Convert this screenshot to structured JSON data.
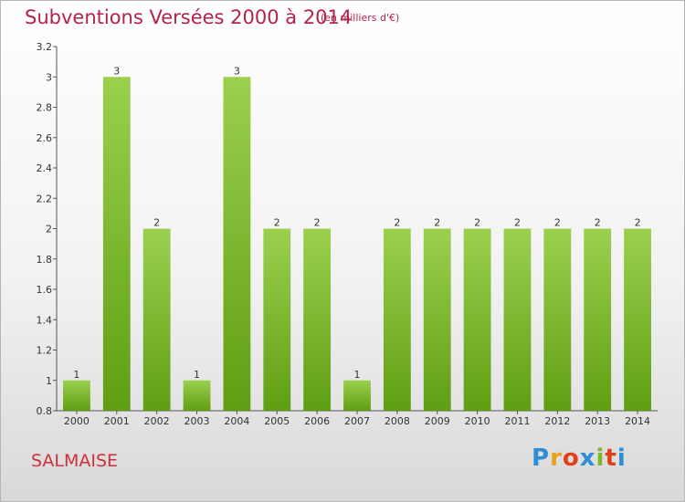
{
  "header": {
    "title": "Subventions Versées 2000 à 2014",
    "subtitle": "(en milliers d'€)"
  },
  "footer": {
    "commune": "SALMAISE",
    "brand_letters": [
      "P",
      "r",
      "o",
      "x",
      "i",
      "t",
      "i"
    ],
    "brand_colors": [
      "#2f8fd6",
      "#e8a21c",
      "#e2401c",
      "#2f8fd6",
      "#7ab82c",
      "#e2401c",
      "#2f8fd6"
    ]
  },
  "colors": {
    "bar_light": "#9bd04f",
    "bar_dark": "#5f9e12",
    "axis": "#555555"
  },
  "chart_data": {
    "type": "bar",
    "categories": [
      "2000",
      "2001",
      "2002",
      "2003",
      "2004",
      "2005",
      "2006",
      "2007",
      "2008",
      "2009",
      "2010",
      "2011",
      "2012",
      "2013",
      "2014"
    ],
    "values": [
      1,
      3,
      2,
      1,
      3,
      2,
      2,
      1,
      2,
      2,
      2,
      2,
      2,
      2,
      2
    ],
    "data_labels": [
      "1",
      "3",
      "2",
      "1",
      "3",
      "2",
      "2",
      "1",
      "2",
      "2",
      "2",
      "2",
      "2",
      "2",
      "2"
    ],
    "ylim": [
      0.8,
      3.2
    ],
    "yticks": [
      0.8,
      1,
      1.2,
      1.4,
      1.6,
      1.8,
      2,
      2.2,
      2.4,
      2.6,
      2.8,
      3,
      3.2
    ],
    "ytick_labels": [
      "0.8",
      "1",
      "1.2",
      "1.4",
      "1.6",
      "1.8",
      "2",
      "2.2",
      "2.4",
      "2.6",
      "2.8",
      "3",
      "3.2"
    ],
    "grid": false,
    "legend": "none"
  }
}
